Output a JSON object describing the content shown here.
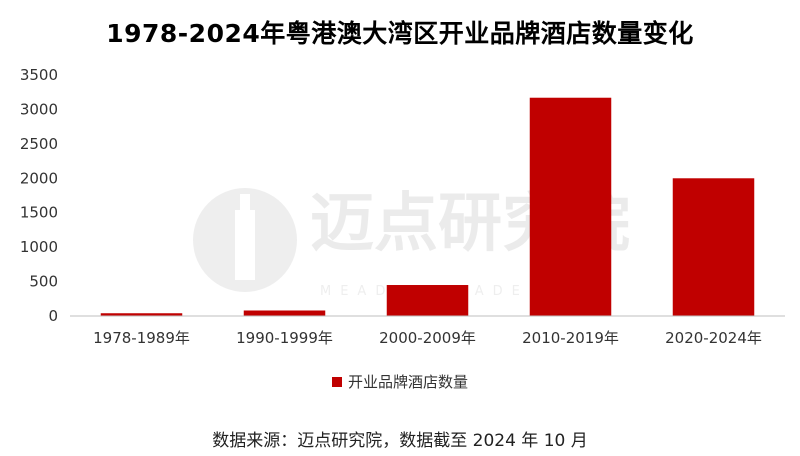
{
  "title": "1978-2024年粤港澳大湾区开业品牌酒店数量变化",
  "chart_data": {
    "type": "bar",
    "title": "1978-2024年粤港澳大湾区开业品牌酒店数量变化",
    "categories": [
      "1978-1989年",
      "1990-1999年",
      "2000-2009年",
      "2010-2019年",
      "2020-2024年"
    ],
    "series": [
      {
        "name": "开业品牌酒店数量",
        "values": [
          40,
          80,
          450,
          3170,
          2000
        ],
        "color": "#c00000"
      }
    ],
    "ylim": [
      0,
      3500
    ],
    "yticks": [
      "0",
      "500",
      "1000",
      "1500",
      "2000",
      "2500",
      "3000",
      "3500"
    ],
    "xlabel": "",
    "ylabel": "",
    "grid": false,
    "legend_position": "bottom"
  },
  "legend": {
    "label": "开业品牌酒店数量",
    "color": "#c00000"
  },
  "source": "数据来源：迈点研究院，数据截至 2024 年 10 月",
  "watermark": {
    "text": "迈点研究院",
    "sub": "MEADIN ACADEMY",
    "icon": "building-logo-icon"
  }
}
